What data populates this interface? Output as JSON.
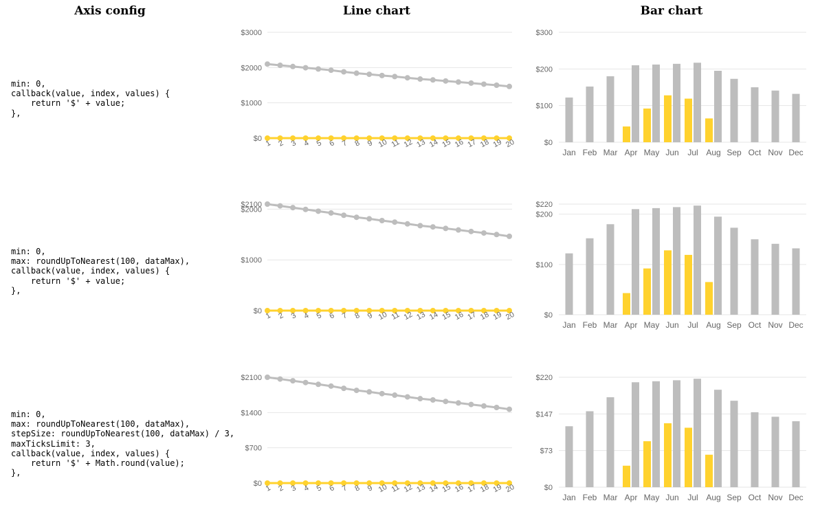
{
  "headers": {
    "axis": "Axis config",
    "line": "Line chart",
    "bar": "Bar chart"
  },
  "colors": {
    "grey": "#bdbdbd",
    "yellow": "#ffd22e",
    "grid": "#e6e6e6",
    "tick": "#666666"
  },
  "rows": [
    {
      "code": "min: 0,\ncallback(value, index, values) {\n    return '$' + value;\n},",
      "line_ticks": [
        {
          "value": 0,
          "label": "$0"
        },
        {
          "value": 1000,
          "label": "$1000"
        },
        {
          "value": 2000,
          "label": "$2000"
        },
        {
          "value": 3000,
          "label": "$3000"
        }
      ],
      "bar_ticks": [
        {
          "value": 0,
          "label": "$0"
        },
        {
          "value": 100,
          "label": "$100"
        },
        {
          "value": 200,
          "label": "$200"
        },
        {
          "value": 300,
          "label": "$300"
        }
      ]
    },
    {
      "code": "min: 0,\nmax: roundUpToNearest(100, dataMax),\ncallback(value, index, values) {\n    return '$' + value;\n},",
      "line_ticks": [
        {
          "value": 0,
          "label": "$0"
        },
        {
          "value": 1000,
          "label": "$1000"
        },
        {
          "value": 2000,
          "label": "$2000"
        },
        {
          "value": 2100,
          "label": "$2100"
        }
      ],
      "bar_ticks": [
        {
          "value": 0,
          "label": "$0"
        },
        {
          "value": 100,
          "label": "$100"
        },
        {
          "value": 200,
          "label": "$200"
        },
        {
          "value": 220,
          "label": "$220"
        }
      ]
    },
    {
      "code": "min: 0,\nmax: roundUpToNearest(100, dataMax),\nstepSize: roundUpToNearest(100, dataMax) / 3,\nmaxTicksLimit: 3,\ncallback(value, index, values) {\n    return '$' + Math.round(value);\n},",
      "line_ticks": [
        {
          "value": 0,
          "label": "$0"
        },
        {
          "value": 700,
          "label": "$700"
        },
        {
          "value": 1400,
          "label": "$1400"
        },
        {
          "value": 2100,
          "label": "$2100"
        }
      ],
      "bar_ticks": [
        {
          "value": 0,
          "label": "$0"
        },
        {
          "value": 73.33,
          "label": "$73"
        },
        {
          "value": 146.67,
          "label": "$147"
        },
        {
          "value": 220,
          "label": "$220"
        }
      ]
    }
  ],
  "chart_data": [
    {
      "type": "line",
      "title": "Line chart",
      "x": [
        "1",
        "2",
        "3",
        "4",
        "5",
        "6",
        "7",
        "8",
        "9",
        "10",
        "11",
        "12",
        "13",
        "14",
        "15",
        "16",
        "17",
        "18",
        "19",
        "20"
      ],
      "series": [
        {
          "color": "#bdbdbd",
          "values": [
            2100,
            2065,
            2030,
            1995,
            1960,
            1925,
            1880,
            1840,
            1810,
            1775,
            1745,
            1710,
            1675,
            1650,
            1620,
            1590,
            1560,
            1530,
            1500,
            1465
          ]
        },
        {
          "color": "#ffd22e",
          "values": [
            0,
            0,
            0,
            0,
            0,
            0,
            0,
            0,
            0,
            0,
            0,
            0,
            0,
            0,
            0,
            0,
            0,
            0,
            0,
            0
          ]
        }
      ],
      "ylim_per_row": [
        [
          0,
          3000
        ],
        [
          0,
          2100
        ],
        [
          0,
          2100
        ]
      ]
    },
    {
      "type": "bar",
      "title": "Bar chart",
      "categories": [
        "Jan",
        "Feb",
        "Mar",
        "Apr",
        "May",
        "Jun",
        "Jul",
        "Aug",
        "Sep",
        "Oct",
        "Nov",
        "Dec"
      ],
      "series": [
        {
          "color": "#bdbdbd",
          "values": [
            122,
            152,
            180,
            210,
            212,
            214,
            217,
            195,
            173,
            150,
            141,
            132
          ]
        },
        {
          "color": "#ffd22e",
          "values": [
            null,
            null,
            null,
            43,
            92,
            128,
            119,
            65,
            null,
            null,
            null,
            null
          ]
        }
      ],
      "ylim_per_row": [
        [
          0,
          300
        ],
        [
          0,
          220
        ],
        [
          0,
          220
        ]
      ]
    }
  ]
}
